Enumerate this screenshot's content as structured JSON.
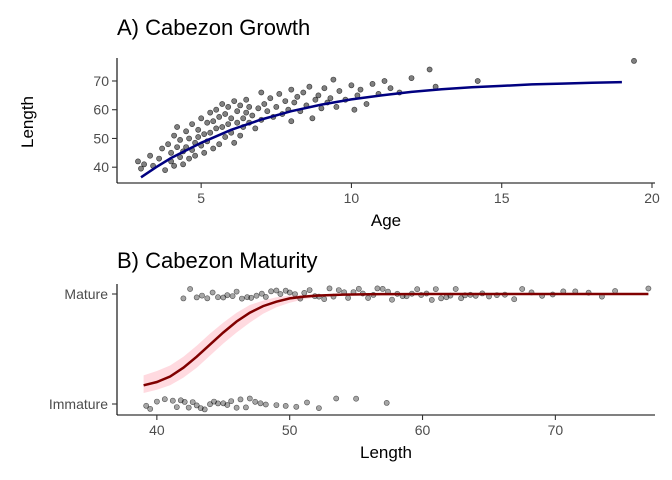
{
  "chart_data": [
    {
      "type": "scatter",
      "panel": "A",
      "title": "A) Cabezon Growth",
      "xlabel": "Age",
      "ylabel": "Length",
      "xlim": [
        2.2,
        20.1
      ],
      "ylim": [
        34.5,
        78
      ],
      "x_ticks": [
        5,
        10,
        15,
        20
      ],
      "y_ticks": [
        40,
        50,
        60,
        70
      ],
      "grid": false,
      "point_color": "#000000",
      "point_opacity": 0.5,
      "curve_color": "#000080",
      "curve": {
        "x": [
          3.0,
          3.5,
          4.0,
          5.0,
          6.0,
          7.0,
          8.0,
          9.0,
          10.0,
          11.0,
          12.0,
          13.0,
          14.0,
          15.0,
          16.0,
          17.0,
          18.0,
          19.0
        ],
        "y": [
          36.5,
          40.0,
          43.2,
          48.5,
          53.0,
          56.6,
          59.5,
          61.8,
          63.6,
          65.0,
          66.2,
          67.1,
          67.8,
          68.3,
          68.8,
          69.1,
          69.4,
          69.6
        ]
      },
      "points": {
        "x": [
          2.9,
          3.0,
          3.1,
          3.3,
          3.4,
          3.6,
          3.7,
          3.8,
          3.9,
          4.0,
          4.0,
          4.1,
          4.1,
          4.2,
          4.2,
          4.3,
          4.3,
          4.4,
          4.4,
          4.5,
          4.5,
          4.6,
          4.6,
          4.7,
          4.7,
          4.8,
          4.8,
          4.9,
          4.9,
          5.0,
          5.0,
          5.1,
          5.1,
          5.2,
          5.2,
          5.3,
          5.3,
          5.4,
          5.4,
          5.5,
          5.5,
          5.6,
          5.6,
          5.7,
          5.7,
          5.8,
          5.8,
          5.9,
          5.9,
          6.0,
          6.0,
          6.1,
          6.1,
          6.2,
          6.2,
          6.3,
          6.3,
          6.4,
          6.4,
          6.5,
          6.5,
          6.6,
          6.6,
          6.7,
          6.8,
          6.9,
          7.0,
          7.0,
          7.1,
          7.2,
          7.3,
          7.4,
          7.5,
          7.6,
          7.7,
          7.8,
          7.9,
          8.0,
          8.0,
          8.1,
          8.2,
          8.3,
          8.4,
          8.5,
          8.6,
          8.7,
          8.8,
          8.9,
          9.0,
          9.1,
          9.2,
          9.3,
          9.4,
          9.5,
          9.6,
          9.8,
          10.0,
          10.1,
          10.2,
          10.3,
          10.5,
          10.7,
          10.9,
          11.1,
          11.3,
          11.6,
          12.0,
          12.6,
          12.8,
          14.2,
          19.4
        ],
        "y": [
          42.0,
          39.5,
          41.0,
          44.0,
          40.5,
          43.0,
          46.5,
          39.0,
          48.0,
          42.0,
          45.0,
          51.0,
          40.5,
          47.0,
          54.0,
          43.5,
          49.5,
          41.0,
          45.5,
          52.5,
          47.0,
          43.0,
          50.0,
          55.0,
          46.0,
          48.5,
          44.0,
          53.0,
          50.5,
          57.0,
          47.5,
          51.5,
          45.0,
          55.5,
          49.0,
          59.0,
          52.0,
          46.5,
          56.0,
          53.5,
          60.0,
          48.0,
          57.5,
          54.0,
          62.0,
          50.5,
          58.5,
          55.0,
          61.0,
          52.0,
          57.0,
          48.5,
          63.0,
          55.5,
          59.5,
          51.0,
          61.5,
          57.0,
          54.0,
          63.5,
          59.0,
          55.5,
          61.0,
          58.0,
          53.5,
          60.5,
          66.0,
          56.5,
          62.0,
          59.5,
          64.0,
          57.5,
          61.0,
          65.5,
          58.5,
          63.0,
          60.0,
          67.0,
          56.0,
          62.5,
          64.5,
          59.5,
          66.0,
          61.5,
          68.0,
          57.0,
          63.5,
          65.0,
          60.5,
          67.5,
          62.5,
          64.0,
          70.5,
          61.0,
          66.5,
          63.5,
          68.5,
          60.0,
          65.0,
          67.0,
          62.0,
          69.0,
          65.5,
          70.0,
          67.5,
          66.0,
          71.0,
          74.0,
          68.0,
          70.0,
          77.0
        ]
      }
    },
    {
      "type": "scatter",
      "panel": "B",
      "title": "B) Cabezon Maturity",
      "xlabel": "Length",
      "ylabel": "",
      "xlim": [
        37,
        77.5
      ],
      "x_ticks": [
        40,
        50,
        60,
        70
      ],
      "y_categories": [
        "Immature",
        "Mature"
      ],
      "grid": false,
      "point_color": "#000000",
      "point_opacity": 0.35,
      "curve_color": "#800000",
      "ribbon_color": "#ffb6c1",
      "curve": {
        "x": [
          39,
          40,
          41,
          42,
          43,
          44,
          45,
          46,
          47,
          48,
          49,
          50,
          51,
          52,
          53,
          54,
          56,
          58,
          60,
          65,
          70,
          77
        ],
        "p": [
          0.17,
          0.2,
          0.25,
          0.33,
          0.43,
          0.54,
          0.65,
          0.75,
          0.83,
          0.89,
          0.93,
          0.96,
          0.975,
          0.985,
          0.99,
          0.995,
          0.998,
          0.999,
          1.0,
          1.0,
          1.0,
          1.0
        ],
        "lo": [
          0.1,
          0.13,
          0.17,
          0.24,
          0.33,
          0.44,
          0.55,
          0.65,
          0.74,
          0.82,
          0.88,
          0.92,
          0.95,
          0.97,
          0.98,
          0.99,
          0.995,
          0.998,
          0.999,
          1.0,
          1.0,
          1.0
        ],
        "hi": [
          0.26,
          0.3,
          0.35,
          0.43,
          0.53,
          0.64,
          0.74,
          0.83,
          0.9,
          0.94,
          0.97,
          0.985,
          0.992,
          0.996,
          0.998,
          0.999,
          1.0,
          1.0,
          1.0,
          1.0,
          1.0,
          1.0
        ]
      },
      "immature_lengths": [
        39.2,
        39.5,
        40.0,
        40.6,
        41.2,
        41.5,
        41.8,
        42.1,
        42.4,
        42.7,
        43.0,
        43.3,
        43.6,
        44.0,
        44.3,
        44.6,
        45.0,
        45.3,
        45.6,
        46.0,
        46.3,
        46.7,
        47.0,
        47.4,
        47.8,
        48.2,
        49.0,
        49.7,
        50.5,
        51.3,
        52.2,
        53.5,
        55.0,
        57.3
      ],
      "mature_lengths": [
        42.0,
        42.5,
        43.0,
        43.4,
        43.8,
        44.2,
        44.6,
        45.0,
        45.3,
        45.7,
        46.0,
        46.4,
        46.8,
        47.1,
        47.5,
        47.9,
        48.2,
        48.6,
        49.0,
        49.3,
        49.7,
        50.0,
        50.4,
        50.8,
        51.1,
        51.5,
        51.9,
        52.2,
        52.6,
        53.0,
        53.3,
        53.7,
        54.1,
        54.4,
        54.8,
        55.2,
        55.5,
        55.9,
        56.3,
        56.6,
        57.0,
        57.4,
        57.7,
        58.1,
        58.5,
        58.8,
        59.2,
        59.6,
        59.9,
        60.3,
        60.7,
        61.0,
        61.4,
        61.8,
        62.1,
        62.5,
        62.9,
        63.2,
        63.6,
        64.0,
        64.5,
        65.0,
        65.6,
        66.2,
        66.9,
        67.5,
        68.2,
        69.0,
        69.8,
        70.6,
        71.5,
        72.5,
        73.5,
        74.5,
        77.0
      ]
    }
  ]
}
